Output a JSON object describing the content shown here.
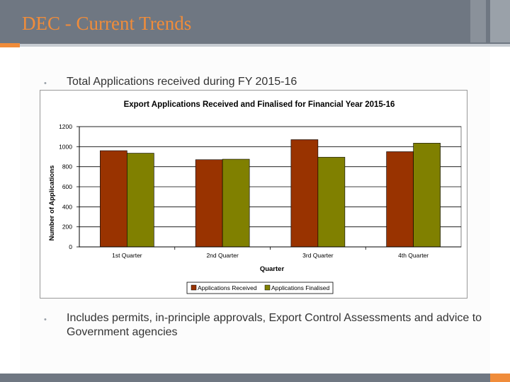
{
  "slide": {
    "title": "DEC - Current Trends",
    "bullets": [
      "Total Applications received during FY 2015-16",
      "Includes permits, in-principle approvals, Export Control Assessments and advice to Government agencies"
    ]
  },
  "colors": {
    "received": "#993300",
    "finalised": "#808000",
    "header": "#6f7782",
    "accent": "#f08c3a"
  },
  "chart_data": {
    "type": "bar",
    "title": "Export Applications Received and Finalised for Financial Year 2015-16",
    "xlabel": "Quarter",
    "ylabel": "Number of Applications",
    "categories": [
      "1st Quarter",
      "2nd Quarter",
      "3rd Quarter",
      "4th Quarter"
    ],
    "series": [
      {
        "name": "Applications Received",
        "values": [
          960,
          870,
          1070,
          950
        ]
      },
      {
        "name": "Applications Finalised",
        "values": [
          935,
          875,
          895,
          1035
        ]
      }
    ],
    "ylim": [
      0,
      1200
    ],
    "yticks": [
      "0",
      "200",
      "400",
      "600",
      "800",
      "1000",
      "1200"
    ],
    "grid": true,
    "legend": "bottom"
  }
}
